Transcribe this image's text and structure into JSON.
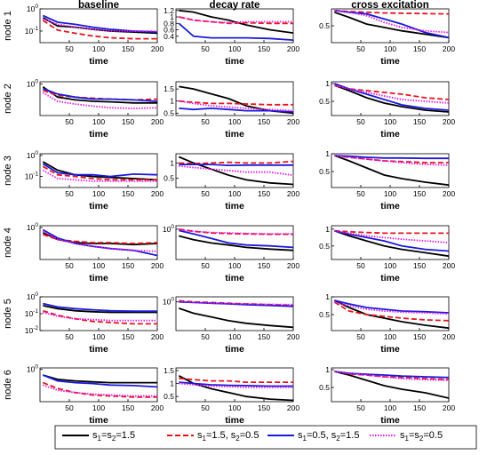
{
  "chart_data": {
    "type": "line",
    "columns": [
      "baseline",
      "decay rate",
      "cross excitation"
    ],
    "rows": [
      "node 1",
      "node 2",
      "node 3",
      "node 4",
      "node 5",
      "node 6"
    ],
    "xlabel": "time",
    "x_ticks": [
      "50",
      "100",
      "150",
      "200"
    ],
    "xlim": [
      0,
      200
    ],
    "legend_placement": "bottom",
    "series": [
      {
        "name": "s1=s2=1.5",
        "label_parts": [
          "s",
          "1",
          "=s",
          "2",
          "=1.5"
        ],
        "color": "#000000",
        "dash": "solid"
      },
      {
        "name": "s1=1.5, s2=0.5",
        "label_parts": [
          "s",
          "1",
          "=1.5, s",
          "2",
          "=0.5"
        ],
        "color": "#e8141c",
        "dash": "dashed"
      },
      {
        "name": "s1=0.5, s2=1.5",
        "label_parts": [
          "s",
          "1",
          "=0.5, s",
          "2",
          "=1.5"
        ],
        "color": "#1a1adb",
        "dash": "solid"
      },
      {
        "name": "s1=s2=0.5",
        "label_parts": [
          "s",
          "1",
          "=s",
          "2",
          "=0.5"
        ],
        "color": "#e619e6",
        "dash": "dotted"
      }
    ],
    "panels": [
      [
        {
          "scale": "log",
          "ylim": [
            0.03,
            1.0
          ],
          "yticks": [
            "10^0",
            "10^-1"
          ],
          "yvals": [
            1,
            0.1
          ],
          "curves": [
            [
              0.4,
              0.17,
              0.15,
              0.12,
              0.1,
              0.09,
              0.08
            ],
            [
              0.3,
              0.11,
              0.08,
              0.06,
              0.05,
              0.045,
              0.045
            ],
            [
              0.5,
              0.25,
              0.2,
              0.15,
              0.12,
              0.1,
              0.09
            ],
            [
              0.35,
              0.2,
              0.15,
              0.12,
              0.1,
              0.1,
              0.1
            ]
          ]
        },
        {
          "scale": "linear",
          "ylim": [
            0.2,
            1.25
          ],
          "yticks": [
            "1.2",
            "1",
            "0.8",
            "0.6",
            "0.4"
          ],
          "yvals": [
            1.2,
            1,
            0.8,
            0.6,
            0.4
          ],
          "curves": [
            [
              1.2,
              1.15,
              1.0,
              0.9,
              0.75,
              0.6,
              0.5
            ],
            [
              1.0,
              0.9,
              0.85,
              0.8,
              0.82,
              0.8,
              0.8
            ],
            [
              0.8,
              0.4,
              0.35,
              0.35,
              0.35,
              0.33,
              0.28
            ],
            [
              1.0,
              0.9,
              0.85,
              0.82,
              0.85,
              0.85,
              0.85
            ]
          ]
        },
        {
          "scale": "linear",
          "ylim": [
            0.0,
            1.0
          ],
          "yticks": [
            "0.5"
          ],
          "yvals": [
            0.5
          ],
          "curves": [
            [
              0.9,
              0.75,
              0.55,
              0.45,
              0.35,
              0.25,
              0.15
            ],
            [
              0.95,
              0.92,
              0.9,
              0.88,
              0.87,
              0.86,
              0.85
            ],
            [
              0.95,
              0.9,
              0.85,
              0.7,
              0.55,
              0.3,
              0.15
            ],
            [
              0.95,
              0.9,
              0.8,
              0.6,
              0.45,
              0.35,
              0.3
            ]
          ]
        }
      ],
      [
        {
          "scale": "log",
          "ylim": [
            0.08,
            1.2
          ],
          "yticks": [
            "10^0"
          ],
          "yvals": [
            1
          ],
          "curves": [
            [
              0.8,
              0.35,
              0.28,
              0.25,
              0.24,
              0.22,
              0.22
            ],
            [
              0.6,
              0.4,
              0.35,
              0.32,
              0.3,
              0.28,
              0.3
            ],
            [
              0.7,
              0.45,
              0.35,
              0.3,
              0.3,
              0.28,
              0.25
            ],
            [
              0.5,
              0.25,
              0.2,
              0.17,
              0.15,
              0.14,
              0.15
            ]
          ]
        },
        {
          "scale": "linear",
          "ylim": [
            0.4,
            1.8
          ],
          "yticks": [
            "1.5",
            "1",
            "0.5"
          ],
          "yvals": [
            1.5,
            1,
            0.5
          ],
          "curves": [
            [
              1.6,
              1.5,
              1.3,
              1.1,
              0.8,
              0.6,
              0.5
            ],
            [
              1.0,
              0.95,
              0.9,
              0.9,
              0.88,
              0.85,
              0.85
            ],
            [
              0.7,
              0.65,
              0.7,
              0.65,
              0.6,
              0.6,
              0.55
            ],
            [
              1.0,
              0.9,
              0.8,
              0.75,
              0.7,
              0.65,
              0.6
            ]
          ]
        },
        {
          "scale": "linear",
          "ylim": [
            0.1,
            1.05
          ],
          "yticks": [
            "1",
            "0.5"
          ],
          "yvals": [
            1,
            0.5
          ],
          "curves": [
            [
              0.95,
              0.8,
              0.6,
              0.45,
              0.35,
              0.25,
              0.2
            ],
            [
              0.95,
              0.85,
              0.8,
              0.75,
              0.7,
              0.6,
              0.55
            ],
            [
              1.0,
              0.85,
              0.7,
              0.55,
              0.4,
              0.3,
              0.25
            ],
            [
              0.95,
              0.85,
              0.75,
              0.65,
              0.55,
              0.5,
              0.45
            ]
          ]
        }
      ],
      [
        {
          "scale": "log",
          "ylim": [
            0.03,
            1.2
          ],
          "yticks": [
            "10^0",
            "10^-1"
          ],
          "yvals": [
            1,
            0.1
          ],
          "curves": [
            [
              0.5,
              0.2,
              0.12,
              0.1,
              0.09,
              0.08,
              0.07
            ],
            [
              0.3,
              0.12,
              0.1,
              0.08,
              0.07,
              0.07,
              0.07
            ],
            [
              0.4,
              0.15,
              0.12,
              0.12,
              0.1,
              0.13,
              0.12
            ],
            [
              0.2,
              0.08,
              0.07,
              0.06,
              0.06,
              0.06,
              0.06
            ]
          ]
        },
        {
          "scale": "linear",
          "ylim": [
            0.2,
            1.3
          ],
          "yticks": [
            "1",
            "0.5"
          ],
          "yvals": [
            1,
            0.5
          ],
          "curves": [
            [
              1.2,
              1.0,
              0.8,
              0.6,
              0.45,
              0.35,
              0.3
            ],
            [
              1.0,
              0.98,
              1.0,
              1.02,
              1.0,
              1.0,
              1.05
            ],
            [
              0.95,
              0.95,
              0.95,
              0.92,
              0.93,
              0.93,
              0.93
            ],
            [
              0.9,
              0.85,
              0.8,
              0.75,
              0.7,
              0.7,
              0.6
            ]
          ]
        },
        {
          "scale": "linear",
          "ylim": [
            0.05,
            1.0
          ],
          "yticks": [
            "1",
            "0.5"
          ],
          "yvals": [
            1,
            0.5
          ],
          "curves": [
            [
              0.95,
              0.8,
              0.6,
              0.4,
              0.3,
              0.2,
              0.12
            ],
            [
              0.95,
              0.9,
              0.85,
              0.8,
              0.78,
              0.75,
              0.75
            ],
            [
              0.95,
              0.93,
              0.9,
              0.88,
              0.88,
              0.87,
              0.87
            ],
            [
              0.95,
              0.9,
              0.85,
              0.8,
              0.75,
              0.7,
              0.68
            ]
          ]
        }
      ],
      [
        {
          "scale": "log",
          "ylim": [
            0.04,
            1.2
          ],
          "yticks": [
            "10^0"
          ],
          "yvals": [
            1
          ],
          "curves": [
            [
              0.6,
              0.3,
              0.22,
              0.2,
              0.2,
              0.18,
              0.2
            ],
            [
              0.5,
              0.3,
              0.25,
              0.22,
              0.22,
              0.2,
              0.22
            ],
            [
              0.8,
              0.35,
              0.2,
              0.15,
              0.12,
              0.1,
              0.06
            ],
            [
              0.7,
              0.3,
              0.2,
              0.15,
              0.12,
              0.1,
              0.09
            ]
          ]
        },
        {
          "scale": "log",
          "ylim": [
            0.1,
            1.3
          ],
          "yticks": [
            "10^0"
          ],
          "yvals": [
            1
          ],
          "curves": [
            [
              0.6,
              0.45,
              0.35,
              0.3,
              0.25,
              0.22,
              0.2
            ],
            [
              1.0,
              0.85,
              0.75,
              0.72,
              0.7,
              0.68,
              0.68
            ],
            [
              0.9,
              0.7,
              0.5,
              0.35,
              0.3,
              0.28,
              0.25
            ],
            [
              0.95,
              0.85,
              0.78,
              0.75,
              0.72,
              0.7,
              0.7
            ]
          ]
        },
        {
          "scale": "linear",
          "ylim": [
            0.1,
            1.1
          ],
          "yticks": [
            "1",
            "0.5"
          ],
          "yvals": [
            1,
            0.5
          ],
          "curves": [
            [
              0.95,
              0.8,
              0.65,
              0.5,
              0.4,
              0.3,
              0.2
            ],
            [
              0.95,
              0.92,
              0.9,
              0.88,
              0.88,
              0.88,
              0.88
            ],
            [
              0.95,
              0.85,
              0.75,
              0.65,
              0.5,
              0.4,
              0.35
            ],
            [
              0.95,
              0.88,
              0.8,
              0.75,
              0.7,
              0.65,
              0.6
            ]
          ]
        }
      ],
      [
        {
          "scale": "log",
          "ylim": [
            0.01,
            1.0
          ],
          "yticks": [
            "10^0",
            "10^-1",
            "10^-2"
          ],
          "yvals": [
            1,
            0.1,
            0.01
          ],
          "curves": [
            [
              0.3,
              0.2,
              0.15,
              0.13,
              0.12,
              0.12,
              0.12
            ],
            [
              0.15,
              0.08,
              0.05,
              0.035,
              0.03,
              0.025,
              0.025
            ],
            [
              0.4,
              0.25,
              0.2,
              0.17,
              0.15,
              0.14,
              0.14
            ],
            [
              0.12,
              0.07,
              0.05,
              0.045,
              0.04,
              0.04,
              0.04
            ]
          ]
        },
        {
          "scale": "log",
          "ylim": [
            0.1,
            1.5
          ],
          "yticks": [
            "10^0"
          ],
          "yvals": [
            1
          ],
          "curves": [
            [
              0.6,
              0.4,
              0.3,
              0.22,
              0.18,
              0.15,
              0.13
            ],
            [
              1.1,
              1.0,
              0.95,
              0.9,
              0.85,
              0.8,
              0.75
            ],
            [
              1.0,
              0.95,
              0.9,
              0.85,
              0.8,
              0.75,
              0.7
            ],
            [
              1.05,
              0.95,
              0.9,
              0.88,
              0.85,
              0.82,
              0.8
            ]
          ]
        },
        {
          "scale": "linear",
          "ylim": [
            0.05,
            1.0
          ],
          "yticks": [
            "1",
            "0.5"
          ],
          "yvals": [
            1,
            0.5
          ],
          "curves": [
            [
              0.9,
              0.7,
              0.5,
              0.4,
              0.3,
              0.2,
              0.12
            ],
            [
              0.85,
              0.6,
              0.5,
              0.45,
              0.4,
              0.35,
              0.33
            ],
            [
              0.9,
              0.8,
              0.7,
              0.65,
              0.6,
              0.58,
              0.55
            ],
            [
              0.85,
              0.75,
              0.65,
              0.6,
              0.57,
              0.55,
              0.52
            ]
          ]
        }
      ],
      [
        {
          "scale": "log",
          "ylim": [
            0.02,
            1.2
          ],
          "yticks": [
            "10^0"
          ],
          "yvals": [
            1
          ],
          "curves": [
            [
              0.5,
              0.3,
              0.25,
              0.22,
              0.2,
              0.2,
              0.2
            ],
            [
              0.2,
              0.1,
              0.06,
              0.045,
              0.04,
              0.035,
              0.035
            ],
            [
              0.5,
              0.25,
              0.2,
              0.18,
              0.15,
              0.14,
              0.12
            ],
            [
              0.15,
              0.08,
              0.06,
              0.05,
              0.045,
              0.04,
              0.04
            ]
          ]
        },
        {
          "scale": "linear",
          "ylim": [
            0.3,
            1.6
          ],
          "yticks": [
            "1.5",
            "1",
            "0.5"
          ],
          "yvals": [
            1.5,
            1,
            0.5
          ],
          "curves": [
            [
              1.3,
              1.0,
              0.8,
              0.65,
              0.5,
              0.4,
              0.35
            ],
            [
              1.2,
              1.15,
              1.1,
              1.1,
              1.05,
              1.05,
              1.05
            ],
            [
              1.05,
              1.0,
              0.95,
              0.93,
              0.92,
              0.9,
              0.9
            ],
            [
              1.0,
              0.95,
              0.9,
              0.88,
              0.85,
              0.85,
              0.85
            ]
          ]
        },
        {
          "scale": "linear",
          "ylim": [
            0.1,
            1.05
          ],
          "yticks": [
            "1",
            "0.5"
          ],
          "yvals": [
            1,
            0.5
          ],
          "curves": [
            [
              0.95,
              0.85,
              0.7,
              0.55,
              0.45,
              0.35,
              0.2
            ],
            [
              0.95,
              0.88,
              0.85,
              0.8,
              0.78,
              0.75,
              0.72
            ],
            [
              0.95,
              0.9,
              0.87,
              0.85,
              0.82,
              0.8,
              0.78
            ],
            [
              0.95,
              0.9,
              0.85,
              0.8,
              0.75,
              0.72,
              0.7
            ]
          ]
        }
      ]
    ]
  }
}
